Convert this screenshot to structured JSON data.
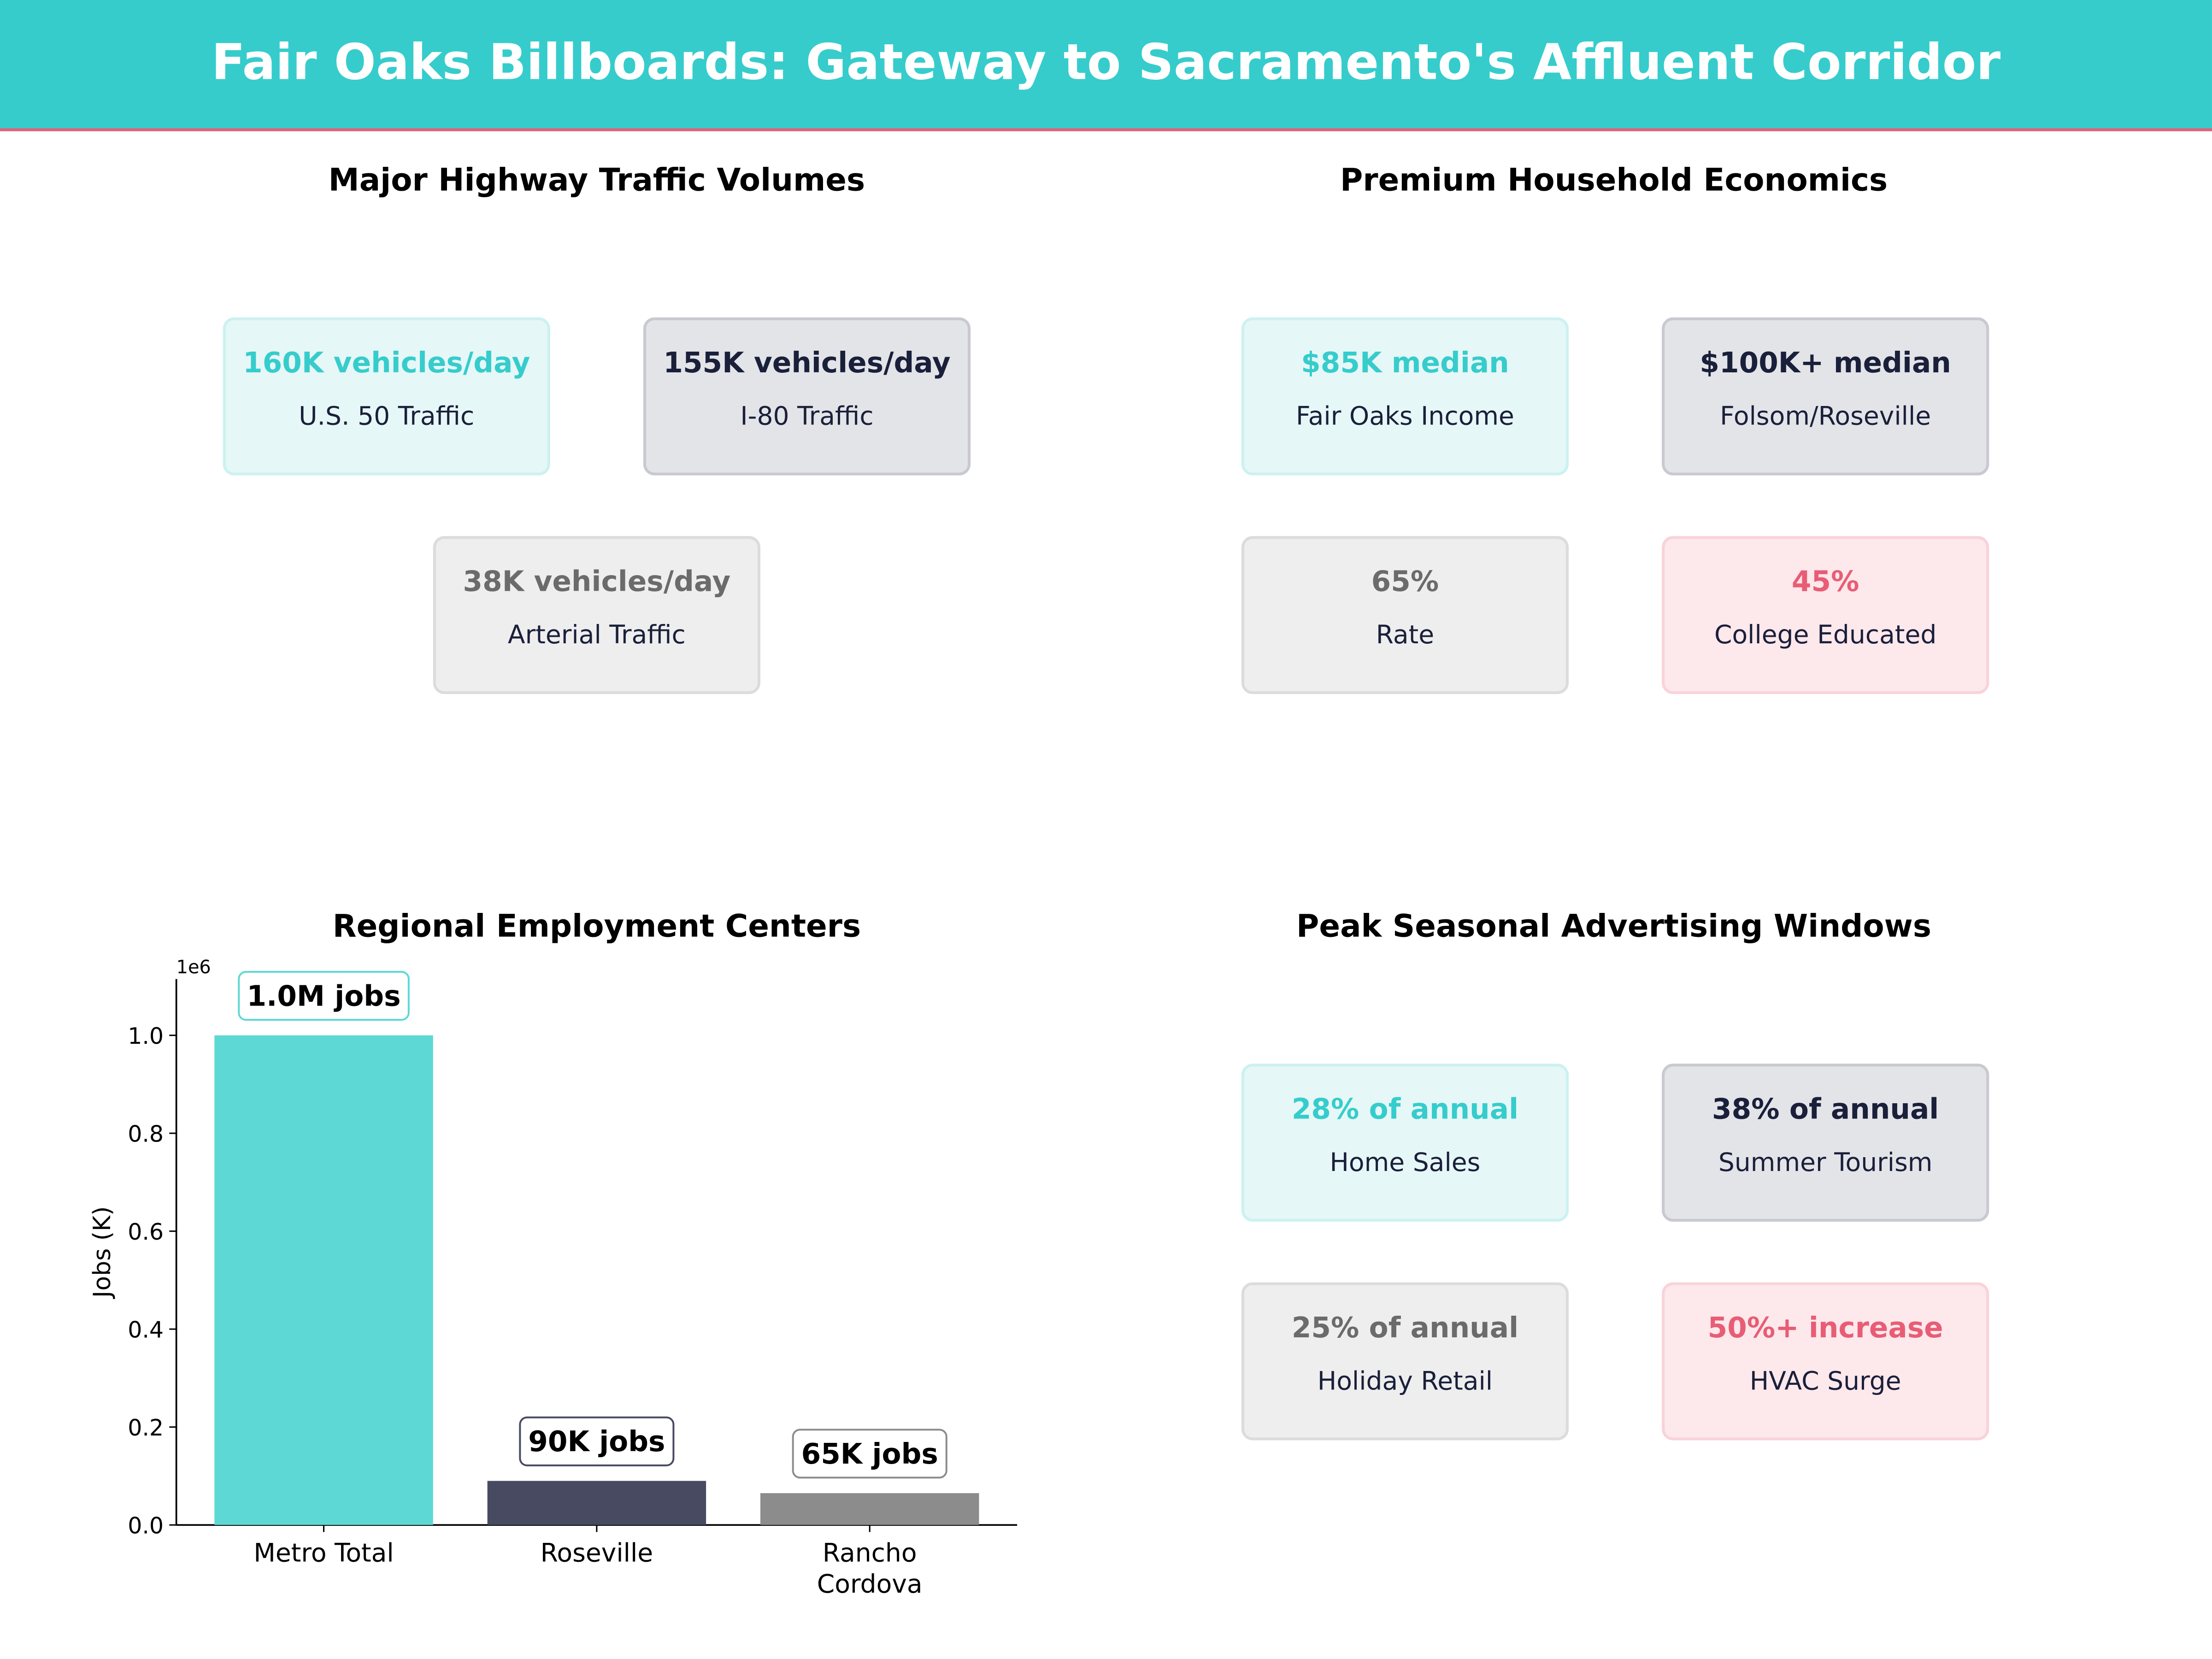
{
  "header": {
    "title": "Fair Oaks Billboards: Gateway to Sacramento's Affluent Corridor"
  },
  "colors": {
    "teal": "#36CCCC",
    "dark": "#1a1f3a",
    "gray": "#6b6b6b",
    "pink": "#e85d75"
  },
  "panels": {
    "traffic": {
      "title": "Major Highway Traffic Volumes",
      "cards": [
        {
          "value": "160K vehicles/day",
          "label": "U.S. 50  Traffic",
          "style": "teal"
        },
        {
          "value": "155K vehicles/day",
          "label": "I-80  Traffic",
          "style": "dark"
        },
        {
          "value": "38K vehicles/day",
          "label": "Arterial Traffic",
          "style": "gray"
        }
      ]
    },
    "economics": {
      "title": "Premium Household Economics",
      "cards": [
        {
          "value": "$85K median",
          "label": "Fair Oaks Income",
          "style": "teal"
        },
        {
          "value": "$100K+ median",
          "label": "Folsom/Roseville",
          "style": "dark"
        },
        {
          "value": "65%",
          "label": "Rate",
          "style": "gray"
        },
        {
          "value": "45%",
          "label": "College Educated",
          "style": "pink"
        }
      ]
    },
    "seasonal": {
      "title": "Peak Seasonal Advertising Windows",
      "cards": [
        {
          "value": "28% of annual",
          "label": "Home Sales",
          "style": "teal"
        },
        {
          "value": "38% of annual",
          "label": "Summer Tourism",
          "style": "dark"
        },
        {
          "value": "25% of annual",
          "label": "Holiday Retail",
          "style": "gray"
        },
        {
          "value": "50%+ increase",
          "label": "HVAC Surge",
          "style": "pink"
        }
      ]
    }
  },
  "chart_data": {
    "type": "bar",
    "title": "Regional Employment Centers",
    "categories": [
      "Metro Total",
      "Roseville",
      "Rancho\nCordova"
    ],
    "values": [
      1000000,
      90000,
      65000
    ],
    "data_labels": [
      "1.0M jobs",
      "90K jobs",
      "65K jobs"
    ],
    "bar_colors": [
      "#5dd8d4",
      "#474a60",
      "#8c8c8c"
    ],
    "xlabel": "",
    "ylabel": "Jobs (K)",
    "offset_label": "1e6",
    "ylim": [
      0,
      1115000
    ],
    "yticks": [
      0,
      200000,
      400000,
      600000,
      800000,
      1000000
    ],
    "ytick_labels": [
      "0.0",
      "0.2",
      "0.4",
      "0.6",
      "0.8",
      "1.0"
    ],
    "grid": false
  }
}
